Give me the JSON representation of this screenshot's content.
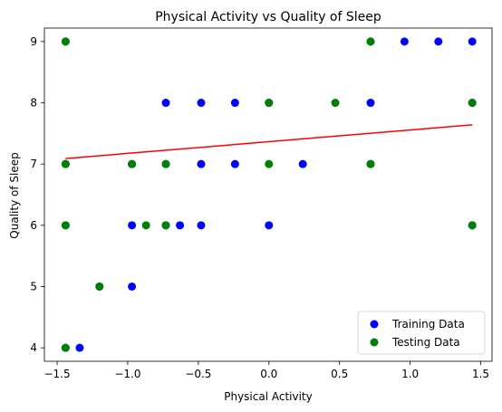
{
  "chart_data": {
    "type": "scatter",
    "title": "Physical Activity vs Quality of Sleep",
    "xlabel": "Physical Activity",
    "ylabel": "Quality of Sleep",
    "xlim": [
      -1.59,
      1.58
    ],
    "ylim": [
      3.78,
      9.22
    ],
    "xticks": [
      -1.5,
      -1.0,
      -0.5,
      0.0,
      0.5,
      1.0,
      1.5
    ],
    "xtick_labels": [
      "−1.5",
      "−1.0",
      "−0.5",
      "0.0",
      "0.5",
      "1.0",
      "1.5"
    ],
    "yticks": [
      4,
      5,
      6,
      7,
      8,
      9
    ],
    "ytick_labels": [
      "4",
      "5",
      "6",
      "7",
      "8",
      "9"
    ],
    "grid": false,
    "legend_position": "bottom-right",
    "series": [
      {
        "name": "Training Data",
        "color": "#0000ff",
        "points": [
          [
            -1.44,
            9
          ],
          [
            -1.44,
            7
          ],
          [
            -1.44,
            6
          ],
          [
            -1.44,
            4
          ],
          [
            -1.34,
            4
          ],
          [
            -1.2,
            5
          ],
          [
            -0.97,
            7
          ],
          [
            -0.97,
            6
          ],
          [
            -0.97,
            5
          ],
          [
            -0.73,
            8
          ],
          [
            -0.73,
            7
          ],
          [
            -0.73,
            6
          ],
          [
            -0.63,
            6
          ],
          [
            -0.48,
            8
          ],
          [
            -0.48,
            7
          ],
          [
            -0.48,
            6
          ],
          [
            -0.24,
            8
          ],
          [
            -0.24,
            7
          ],
          [
            0.0,
            8
          ],
          [
            0.0,
            6
          ],
          [
            0.24,
            7
          ],
          [
            0.72,
            9
          ],
          [
            0.72,
            8
          ],
          [
            0.72,
            7
          ],
          [
            0.96,
            9
          ],
          [
            1.2,
            9
          ],
          [
            1.44,
            9
          ],
          [
            1.44,
            8
          ],
          [
            1.44,
            6
          ]
        ]
      },
      {
        "name": "Testing Data",
        "color": "#008000",
        "points": [
          [
            -1.44,
            9
          ],
          [
            -1.44,
            7
          ],
          [
            -1.44,
            6
          ],
          [
            -1.44,
            4
          ],
          [
            -1.2,
            5
          ],
          [
            -0.97,
            7
          ],
          [
            -0.87,
            6
          ],
          [
            -0.73,
            7
          ],
          [
            -0.73,
            6
          ],
          [
            0.0,
            8
          ],
          [
            0.0,
            7
          ],
          [
            0.47,
            8
          ],
          [
            0.72,
            9
          ],
          [
            0.72,
            7
          ],
          [
            1.44,
            8
          ],
          [
            1.44,
            6
          ]
        ]
      }
    ],
    "fit_line": {
      "color": "#ff0000",
      "points": [
        [
          -1.44,
          7.09
        ],
        [
          1.44,
          7.64
        ]
      ]
    }
  }
}
